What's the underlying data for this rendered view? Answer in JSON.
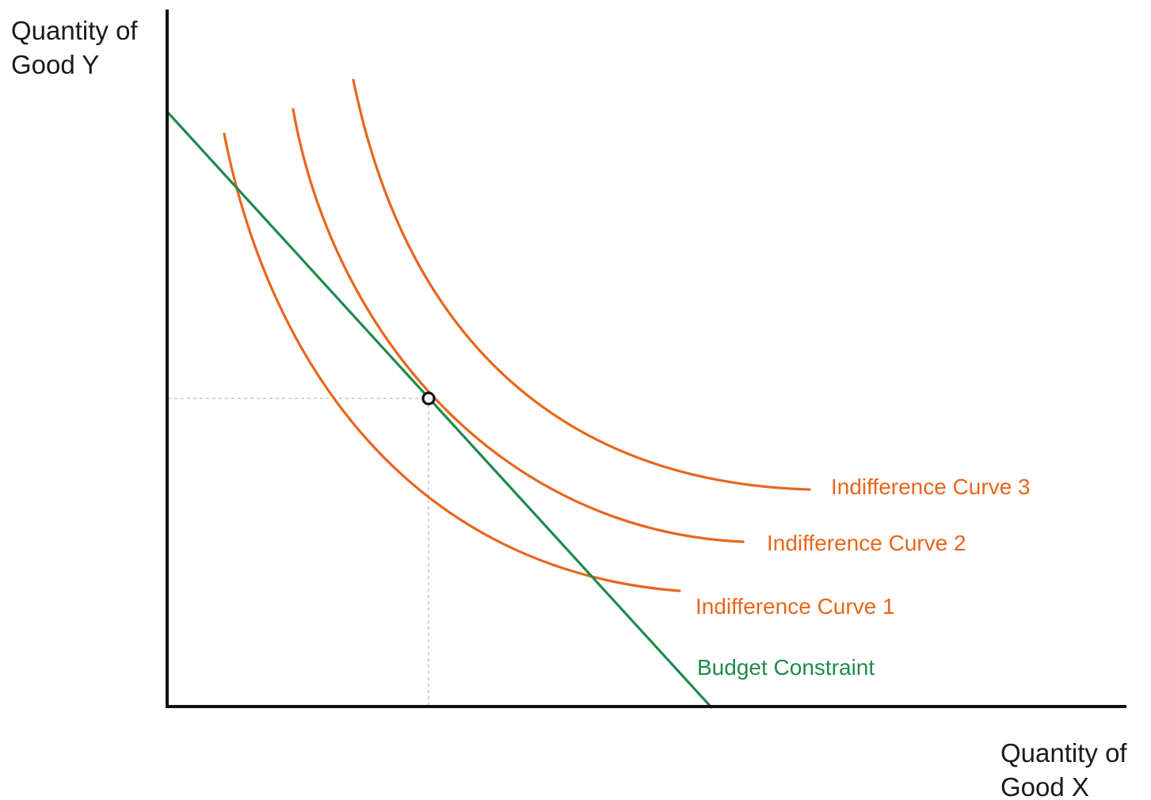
{
  "diagram": {
    "y_axis_label": [
      "Quantity of",
      "Good Y"
    ],
    "x_axis_label": [
      "Quantity of",
      "Good X"
    ],
    "curves": [
      {
        "label": "Indifference Curve 3",
        "color": "#e8661c"
      },
      {
        "label": "Indifference Curve 2",
        "color": "#e8661c"
      },
      {
        "label": "Indifference Curve 1",
        "color": "#e8661c"
      }
    ],
    "budget_constraint": {
      "label": "Budget Constraint",
      "color": "#1f8a4c"
    },
    "axis_color": "#111111",
    "guide_color": "#bbbbbb",
    "optimum_marker": "open-circle"
  }
}
